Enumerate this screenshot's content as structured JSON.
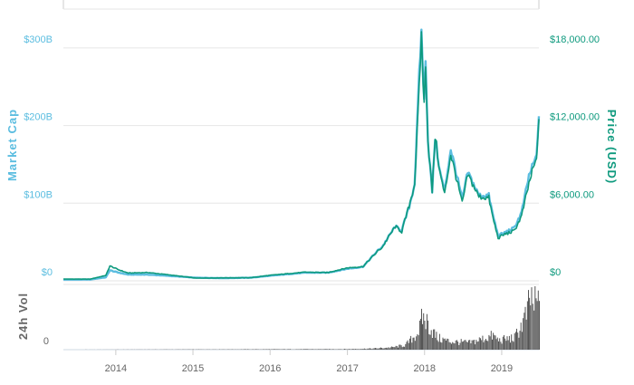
{
  "chart_data": {
    "type": "line",
    "x_range": [
      "2013-04-28",
      "2019-06-26"
    ],
    "x_ticks": [
      "2014",
      "2015",
      "2016",
      "2017",
      "2018",
      "2019"
    ],
    "left_axis": {
      "title": "Market Cap",
      "ticks": [
        "$0",
        "$100B",
        "$200B",
        "$300B"
      ],
      "ylim": [
        0,
        350
      ]
    },
    "right_axis": {
      "title": "Price (USD)",
      "ticks": [
        "$0",
        "$6,000.00",
        "$12,000.00",
        "$18,000.00"
      ],
      "ylim": [
        0,
        21000
      ]
    },
    "volume_axis": {
      "title": "24h Vol",
      "ticks": [
        "0"
      ]
    },
    "grid": true,
    "colors": {
      "market_cap": "#5bbde0",
      "price": "#0e9a7e",
      "volume": "#555555",
      "grid": "#e6e6e6"
    },
    "series": [
      {
        "name": "Market Cap",
        "axis": "left",
        "x": [
          "2013-04-28",
          "2013-09-01",
          "2013-11-15",
          "2013-12-04",
          "2014-01-15",
          "2014-03-01",
          "2014-06-01",
          "2014-09-01",
          "2015-01-15",
          "2015-06-01",
          "2015-10-01",
          "2016-01-01",
          "2016-06-15",
          "2016-10-01",
          "2017-01-01",
          "2017-03-15",
          "2017-05-25",
          "2017-06-15",
          "2017-08-15",
          "2017-09-15",
          "2017-10-20",
          "2017-11-15",
          "2017-12-07",
          "2017-12-17",
          "2017-12-30",
          "2018-01-06",
          "2018-01-17",
          "2018-02-06",
          "2018-02-20",
          "2018-03-15",
          "2018-04-06",
          "2018-05-05",
          "2018-06-28",
          "2018-07-25",
          "2018-09-15",
          "2018-11-01",
          "2018-11-20",
          "2018-12-15",
          "2019-01-15",
          "2019-03-01",
          "2019-04-05",
          "2019-05-10",
          "2019-05-30",
          "2019-06-15",
          "2019-06-26"
        ],
        "values": [
          1.5,
          1.6,
          4.5,
          13.5,
          10.5,
          8.0,
          8.0,
          6.5,
          4.0,
          3.5,
          4.0,
          6.5,
          10.5,
          10.5,
          15.5,
          18.0,
          39.0,
          44.0,
          70.0,
          65.0,
          95.0,
          125.0,
          265.0,
          320.0,
          230.0,
          290.0,
          180.0,
          115.0,
          185.0,
          140.0,
          115.0,
          170.0,
          105.0,
          140.0,
          110.0,
          110.0,
          85.0,
          58.0,
          62.0,
          68.0,
          88.0,
          135.0,
          150.0,
          160.0,
          212.0
        ]
      },
      {
        "name": "Price (USD)",
        "axis": "right",
        "x": [
          "2013-04-28",
          "2013-09-01",
          "2013-11-15",
          "2013-12-04",
          "2014-01-15",
          "2014-03-01",
          "2014-06-01",
          "2014-09-01",
          "2015-01-15",
          "2015-06-01",
          "2015-10-01",
          "2016-01-01",
          "2016-06-15",
          "2016-10-01",
          "2017-01-01",
          "2017-03-15",
          "2017-05-25",
          "2017-06-15",
          "2017-08-15",
          "2017-09-15",
          "2017-10-20",
          "2017-11-15",
          "2017-12-07",
          "2017-12-17",
          "2017-12-30",
          "2018-01-06",
          "2018-01-17",
          "2018-02-06",
          "2018-02-20",
          "2018-03-15",
          "2018-04-06",
          "2018-05-05",
          "2018-06-28",
          "2018-07-25",
          "2018-09-15",
          "2018-11-01",
          "2018-11-20",
          "2018-12-15",
          "2019-01-15",
          "2019-03-01",
          "2019-04-05",
          "2019-05-10",
          "2019-05-30",
          "2019-06-15",
          "2019-06-26"
        ],
        "values": [
          135,
          130,
          420,
          1150,
          850,
          600,
          640,
          480,
          210,
          230,
          240,
          430,
          670,
          640,
          1000,
          1100,
          2300,
          2600,
          4200,
          3800,
          5800,
          7500,
          14800,
          19000,
          13500,
          17000,
          10800,
          6900,
          11200,
          8300,
          6700,
          9800,
          6000,
          8200,
          6500,
          6400,
          4900,
          3300,
          3600,
          3850,
          5000,
          7500,
          8700,
          9300,
          12500
        ]
      },
      {
        "name": "24h Vol",
        "axis": "volume",
        "x": [
          "2013-04-28",
          "2017-01-01",
          "2017-05-01",
          "2017-08-01",
          "2017-10-01",
          "2017-11-15",
          "2017-12-07",
          "2017-12-20",
          "2018-01-10",
          "2018-02-05",
          "2018-03-01",
          "2018-05-01",
          "2018-08-01",
          "2018-11-20",
          "2018-12-15",
          "2019-01-15",
          "2019-03-01",
          "2019-04-05",
          "2019-05-01",
          "2019-05-15",
          "2019-06-01",
          "2019-06-26"
        ],
        "values": [
          0,
          0.5,
          1,
          2,
          4,
          12,
          18,
          28,
          24,
          16,
          10,
          7,
          6,
          12,
          8,
          9,
          10,
          22,
          32,
          45,
          38,
          42
        ]
      }
    ]
  }
}
